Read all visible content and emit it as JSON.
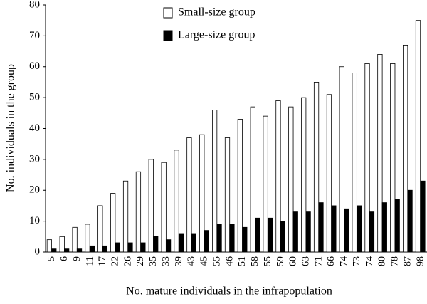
{
  "chart_data": {
    "type": "bar",
    "xlabel": "No. mature individuals in the infrapopulation",
    "ylabel": "No. individuals in the group",
    "categories": [
      "5",
      "6",
      "9",
      "11",
      "17",
      "22",
      "26",
      "29",
      "35",
      "33",
      "39",
      "43",
      "45",
      "55",
      "46",
      "51",
      "58",
      "55",
      "59",
      "60",
      "63",
      "71",
      "66",
      "74",
      "73",
      "74",
      "80",
      "78",
      "87",
      "98"
    ],
    "series": [
      {
        "name": "Small-size group",
        "color": "#ffffff",
        "values": [
          4,
          5,
          8,
          9,
          15,
          19,
          23,
          26,
          30,
          29,
          33,
          37,
          38,
          46,
          37,
          43,
          47,
          44,
          49,
          47,
          50,
          55,
          51,
          60,
          58,
          61,
          64,
          61,
          67,
          75
        ]
      },
      {
        "name": "Large-size group",
        "color": "#000000",
        "values": [
          1,
          1,
          1,
          2,
          2,
          3,
          3,
          3,
          5,
          4,
          6,
          6,
          7,
          9,
          9,
          8,
          11,
          11,
          10,
          13,
          13,
          16,
          15,
          14,
          15,
          13,
          16,
          17,
          20,
          23
        ]
      }
    ],
    "ylim": [
      0,
      80
    ],
    "yticks": [
      0,
      10,
      20,
      30,
      40,
      50,
      60,
      70,
      80
    ],
    "grid": false,
    "legend": "top"
  }
}
